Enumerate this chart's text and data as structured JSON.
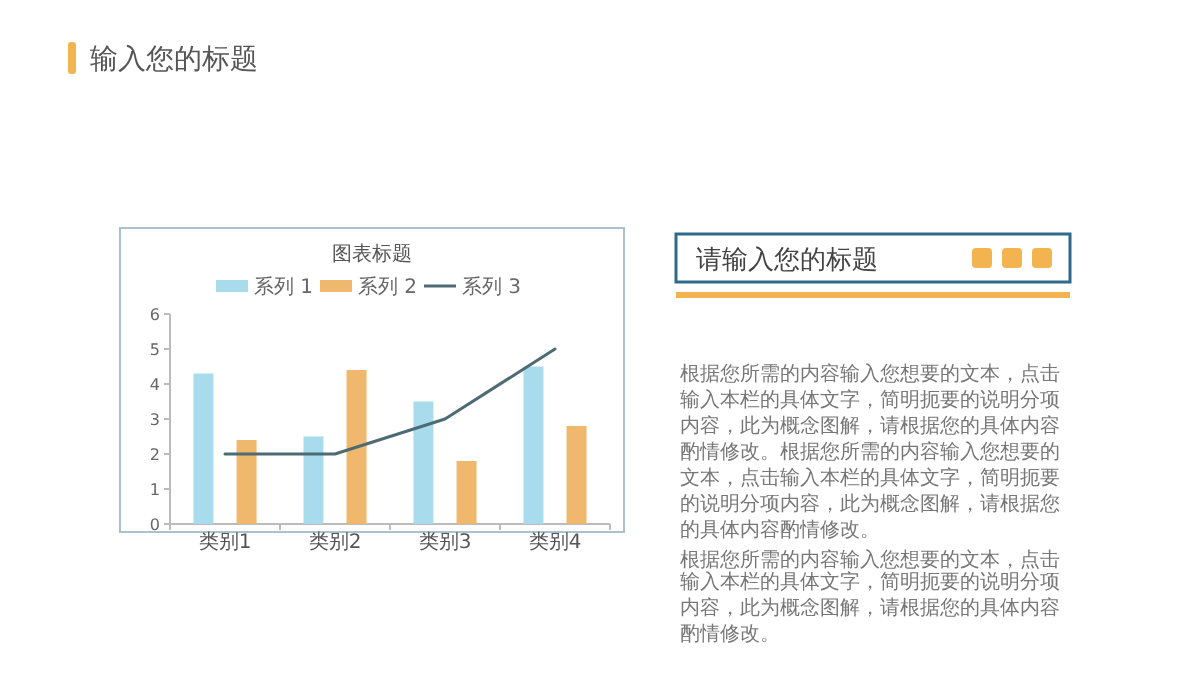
{
  "chart_data": {
    "type": "bar",
    "title": "图表标题",
    "categories": [
      "类别1",
      "类别2",
      "类别3",
      "类别4"
    ],
    "series": [
      {
        "name": "系列 1",
        "color": "#a8dcec",
        "values": [
          4.3,
          2.5,
          3.5,
          4.5
        ]
      },
      {
        "name": "系列 2",
        "color": "#f0b86c",
        "values": [
          2.4,
          4.4,
          1.8,
          2.8
        ]
      },
      {
        "name": "系列 3",
        "type": "line",
        "color": "#4e6b73",
        "values": [
          2,
          2,
          3,
          5
        ]
      }
    ],
    "ylim": [
      0,
      6
    ],
    "yticks": [
      0,
      1,
      2,
      3,
      4,
      5,
      6
    ],
    "legend": "top",
    "annotations": [
      "输入您的标题",
      "请输入您的标题",
      "根据您所需的内容输入您想要的文本，点击输入本栏的具体文字，简明扼要的说明分项内容，此为概念图解，请根据您的具体内容酌情修改。根据您所需的内容输入您想要的文本，点击输入本栏的具体文字，简明扼要的说明分项内容，此为概念图解，请根据您的具体内容酌情修改。",
      "根据您所需的内容输入您想要的文本，点击输入本栏的具体文字，简明扼要的说明分项内容，此为概念图解，请根据您的具体内容酌情修改。"
    ]
  }
}
